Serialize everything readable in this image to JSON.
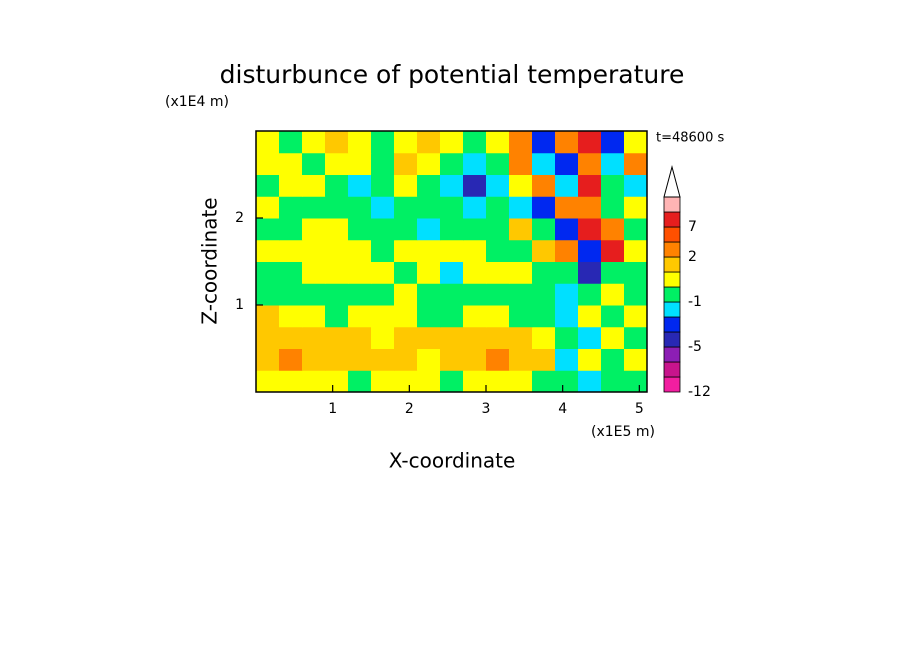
{
  "chart_data": {
    "type": "filled-contour",
    "title": "disturbunce of potential temperature",
    "x_label": "X-coordinate",
    "y_label": "Z-coordinate",
    "x_unit": "(x1E5 m)",
    "y_unit": "(x1E4 m)",
    "annotation": "t=48600 s",
    "xlim": [
      0,
      5.1
    ],
    "ylim": [
      0,
      3
    ],
    "xticks": [
      1,
      2,
      3,
      4,
      5
    ],
    "yticks": [
      1,
      2
    ],
    "x": [
      0,
      0.3,
      0.6,
      0.9,
      1.2,
      1.5,
      1.8,
      2.1,
      2.4,
      2.7,
      3,
      3.3,
      3.6,
      3.9,
      4.2,
      4.5,
      4.8,
      5.1
    ],
    "y": [
      0,
      0.25,
      0.5,
      0.75,
      1,
      1.25,
      1.5,
      1.75,
      2,
      2.25,
      2.5,
      2.75,
      3
    ],
    "z": [
      [
        0.5,
        0.5,
        0.5,
        0.5,
        -0.5,
        0.5,
        0.5,
        0.5,
        -0.5,
        0.5,
        0.5,
        0.5,
        -0.5,
        -0.5,
        -1.5,
        -0.5,
        -0.5
      ],
      [
        1.5,
        3,
        1.5,
        1.5,
        1.5,
        1.5,
        1.5,
        0.5,
        1.5,
        1.5,
        3,
        1.5,
        1.5,
        -1.5,
        0.5,
        -0.5,
        0.5
      ],
      [
        1.5,
        1.5,
        1.5,
        1.5,
        1.5,
        0.5,
        1.5,
        1.5,
        1.5,
        1.5,
        1.5,
        1.5,
        0.5,
        -0.5,
        -1.5,
        0.5,
        -0.5
      ],
      [
        1.5,
        0.5,
        0.5,
        -0.5,
        0.5,
        0.5,
        0.5,
        -0.5,
        -0.5,
        0.5,
        0.5,
        -0.5,
        -0.5,
        -1.5,
        0.5,
        -0.5,
        0.5
      ],
      [
        -0.5,
        -0.5,
        -0.5,
        -0.5,
        -0.5,
        -0.5,
        0.5,
        -0.5,
        -0.5,
        -0.5,
        -0.5,
        -0.5,
        -0.5,
        -1.5,
        -0.5,
        0.5,
        -0.5
      ],
      [
        -0.5,
        -0.5,
        0.5,
        0.5,
        0.5,
        0.5,
        -0.5,
        0.5,
        -1.5,
        0.5,
        0.5,
        0.5,
        -0.5,
        -0.5,
        -4.5,
        -0.5,
        -0.5
      ],
      [
        0.5,
        0.5,
        0.5,
        0.5,
        0.5,
        -0.5,
        0.5,
        0.5,
        0.5,
        0.5,
        -0.5,
        -0.5,
        1.5,
        3,
        -3,
        8,
        0.5
      ],
      [
        -0.5,
        -0.5,
        0.5,
        0.5,
        -0.5,
        -0.5,
        -0.5,
        -1.5,
        -0.5,
        -0.5,
        -0.5,
        1.5,
        -0.5,
        -3,
        8,
        3,
        -0.5
      ],
      [
        0.5,
        -0.5,
        -0.5,
        -0.5,
        -0.5,
        -1.5,
        -0.5,
        -0.5,
        -0.5,
        -1.5,
        -0.5,
        -1.5,
        -3,
        3,
        3,
        -0.5,
        0.5
      ],
      [
        -0.5,
        0.5,
        0.5,
        -0.5,
        -1.5,
        -0.5,
        0.5,
        -0.5,
        -1.5,
        -4.5,
        -1.5,
        0.5,
        3,
        -1.5,
        8,
        -0.5,
        -1.5
      ],
      [
        0.5,
        0.5,
        -0.5,
        0.5,
        0.5,
        -0.5,
        1.5,
        0.5,
        -0.5,
        -1.5,
        -0.5,
        3,
        -1.5,
        -3,
        3,
        -1.5,
        3
      ],
      [
        0.5,
        -0.5,
        0.5,
        1.5,
        0.5,
        -0.5,
        0.5,
        1.5,
        0.5,
        -0.5,
        0.5,
        3,
        -3,
        3,
        8,
        -3,
        0.5
      ]
    ],
    "levels": [
      -12,
      -10,
      -8,
      -5,
      -4,
      -2,
      -1,
      0,
      1,
      2,
      4,
      7,
      9,
      12
    ],
    "colors": [
      "#f21ea0",
      "#c8148c",
      "#8c1eb4",
      "#2828b4",
      "#0028f0",
      "#00e0ff",
      "#00f064",
      "#ffff00",
      "#ffc800",
      "#ff8200",
      "#ff5000",
      "#e61e1e",
      "#ffb4b4"
    ],
    "extend_color": "#ffffff",
    "cbar_ticks": [
      -12,
      -5,
      -1,
      2,
      7
    ]
  }
}
